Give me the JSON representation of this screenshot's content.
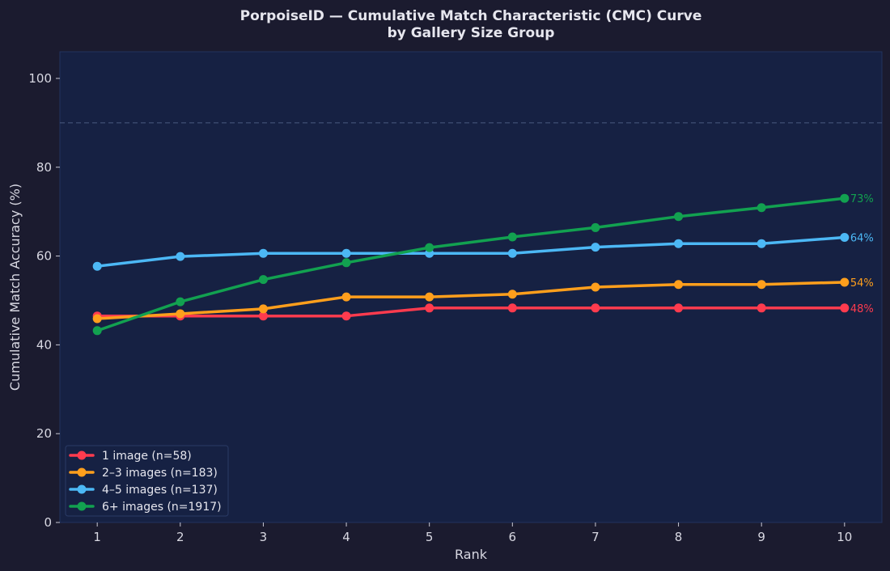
{
  "chart_data": {
    "type": "line",
    "title": "PorpoiseID — Cumulative Match Characteristic (CMC) Curve",
    "subtitle": "by Gallery Size Group",
    "xlabel": "Rank",
    "ylabel": "Cumulative Match Accuracy (%)",
    "x": [
      1,
      2,
      3,
      4,
      5,
      6,
      7,
      8,
      9,
      10
    ],
    "xlim": [
      0.55,
      10.45
    ],
    "ylim": [
      0,
      106
    ],
    "yticks": [
      0,
      20,
      40,
      60,
      80,
      100
    ],
    "reference_line": 90,
    "grid": false,
    "legend_position": "bottom-left",
    "series": [
      {
        "name": "1 image  (n=58)",
        "color": "#ff3b4e",
        "values": [
          46.5,
          46.5,
          46.5,
          46.5,
          48.3,
          48.3,
          48.3,
          48.3,
          48.3,
          48.3
        ],
        "end_label": "48%"
      },
      {
        "name": "2–3 images  (n=183)",
        "color": "#ff9f1c",
        "values": [
          45.9,
          47.0,
          48.1,
          50.8,
          50.8,
          51.4,
          53.0,
          53.6,
          53.6,
          54.1
        ],
        "end_label": "54%"
      },
      {
        "name": "4–5 images  (n=137)",
        "color": "#4cb8f5",
        "values": [
          57.7,
          59.9,
          60.6,
          60.6,
          60.6,
          60.6,
          62.0,
          62.8,
          62.8,
          64.2
        ],
        "end_label": "64%"
      },
      {
        "name": "6+ images  (n=1917)",
        "color": "#12a150",
        "values": [
          43.2,
          49.7,
          54.7,
          58.5,
          61.9,
          64.3,
          66.4,
          68.9,
          70.9,
          73.0
        ],
        "end_label": "73%"
      }
    ]
  }
}
